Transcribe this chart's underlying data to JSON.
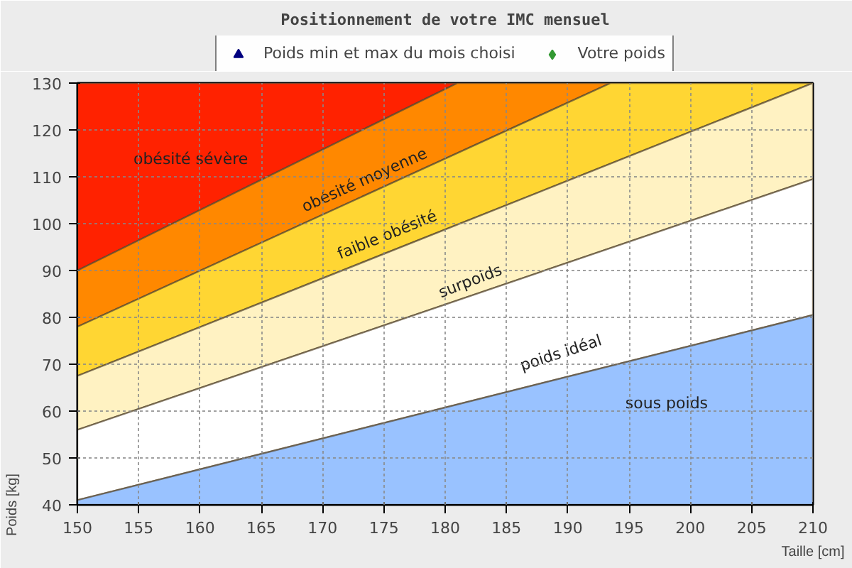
{
  "chart_data": {
    "type": "area",
    "title": "Positionnement de votre IMC mensuel",
    "xlabel": "Taille [cm]",
    "ylabel": "Poids [kg]",
    "xlim": [
      150,
      210
    ],
    "ylim": [
      40,
      130
    ],
    "xticks": [
      150,
      155,
      160,
      165,
      170,
      175,
      180,
      185,
      190,
      195,
      200,
      205,
      210
    ],
    "yticks": [
      40,
      50,
      60,
      70,
      80,
      90,
      100,
      110,
      120,
      130
    ],
    "grid": true,
    "legend": "top",
    "series": [
      {
        "color": "#ff2200",
        "x": [
          150,
          210
        ],
        "values": [
          130,
          130
        ]
      },
      {
        "color": "#ff8800",
        "x": [
          150,
          181,
          210
        ],
        "values": [
          90,
          130,
          130
        ]
      },
      {
        "color": "#ffd633",
        "x": [
          150,
          193.5,
          210
        ],
        "values": [
          78,
          130,
          130
        ]
      },
      {
        "color": "#fff2c2",
        "x": [
          150,
          210
        ],
        "values": [
          67.5,
          130
        ]
      },
      {
        "color": "#ffffff",
        "x": [
          150,
          210
        ],
        "values": [
          56,
          109.5
        ]
      },
      {
        "color": "#99c2ff",
        "x": [
          150,
          210
        ],
        "values": [
          41,
          80.5
        ]
      },
      {
        "type": "scatter",
        "name": "Poids min et max du mois choisi",
        "color": "#000080",
        "marker": "triangle"
      },
      {
        "type": "scatter",
        "name": "Votre poids",
        "color": "#339933",
        "marker": "diamond"
      }
    ],
    "annotations": [
      "obésité sévère",
      "obésité moyenne",
      "faible obésité",
      "surpoids",
      "poids idéal",
      "sous poids"
    ]
  }
}
